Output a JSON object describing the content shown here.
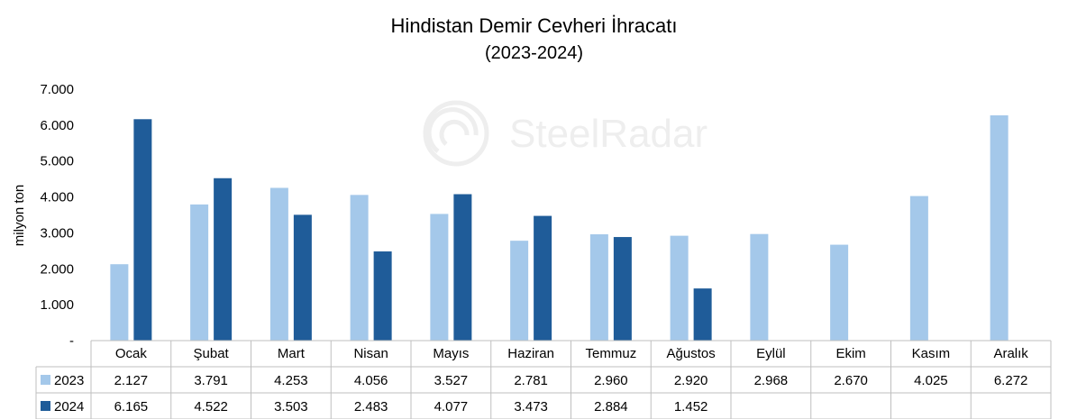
{
  "chart_data": {
    "type": "bar",
    "title": "Hindistan Demir Cevheri İhracatı",
    "subtitle": "(2023-2024)",
    "ylabel": "milyon ton",
    "xlabel": "",
    "ylim": [
      0,
      7000
    ],
    "yticks": [
      0,
      1000,
      2000,
      3000,
      4000,
      5000,
      6000,
      7000
    ],
    "ytick_labels": [
      "-",
      "1.000",
      "2.000",
      "3.000",
      "4.000",
      "5.000",
      "6.000",
      "7.000"
    ],
    "categories": [
      "Ocak",
      "Şubat",
      "Mart",
      "Nisan",
      "Mayıs",
      "Haziran",
      "Temmuz",
      "Ağustos",
      "Eylül",
      "Ekim",
      "Kasım",
      "Aralık"
    ],
    "series": [
      {
        "name": "2023",
        "color": "#A4C8EA",
        "values": [
          2127,
          3791,
          4253,
          4056,
          3527,
          2781,
          2960,
          2920,
          2968,
          2670,
          4025,
          6272
        ],
        "labels": [
          "2.127",
          "3.791",
          "4.253",
          "4.056",
          "3.527",
          "2.781",
          "2.960",
          "2.920",
          "2.968",
          "2.670",
          "4.025",
          "6.272"
        ]
      },
      {
        "name": "2024",
        "color": "#1F5C99",
        "values": [
          6165,
          4522,
          3503,
          2483,
          4077,
          3473,
          2884,
          1452,
          null,
          null,
          null,
          null
        ],
        "labels": [
          "6.165",
          "4.522",
          "3.503",
          "2.483",
          "4.077",
          "3.473",
          "2.884",
          "1.452",
          "",
          "",
          "",
          ""
        ]
      }
    ],
    "grid": false,
    "legend": "data-table"
  },
  "watermark": {
    "text": "SteelRadar",
    "icon": "radar-logo-icon"
  }
}
